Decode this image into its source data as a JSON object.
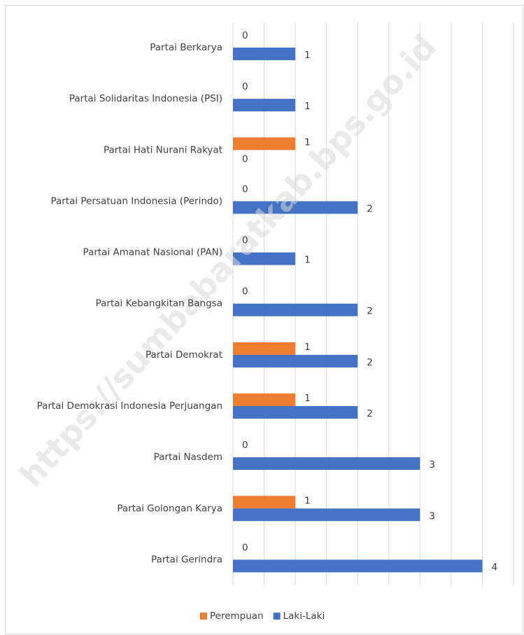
{
  "chart_data": {
    "type": "hbar",
    "categories": [
      "Partai Berkarya",
      "Partai Solidaritas Indonesia (PSI)",
      "Partai Hati Nurani Rakyat",
      "Partai Persatuan Indonesia (Perindo)",
      "Partai Amanat Nasional (PAN)",
      "Partai Kebangkitan Bangsa",
      "Partai Demokrat",
      "Partai Demokrasi Indonesia Perjuangan",
      "Partai Nasdem",
      "Partai Golongan Karya",
      "Partai Gerindra"
    ],
    "series": [
      {
        "name": "Perempuan",
        "color": "#ed7d31",
        "values": [
          0,
          0,
          1,
          0,
          0,
          0,
          1,
          1,
          0,
          1,
          0
        ]
      },
      {
        "name": "Laki-Laki",
        "color": "#4472c4",
        "values": [
          1,
          1,
          0,
          2,
          1,
          2,
          2,
          2,
          3,
          3,
          4
        ]
      }
    ],
    "xlim": [
      0,
      4.5
    ],
    "xticks": [
      0,
      0.5,
      1,
      1.5,
      2,
      2.5,
      3,
      3.5,
      4,
      4.5
    ],
    "grid": true,
    "legend": "bottom",
    "watermark": "https://sumbabaratkab.bps.go.id"
  }
}
